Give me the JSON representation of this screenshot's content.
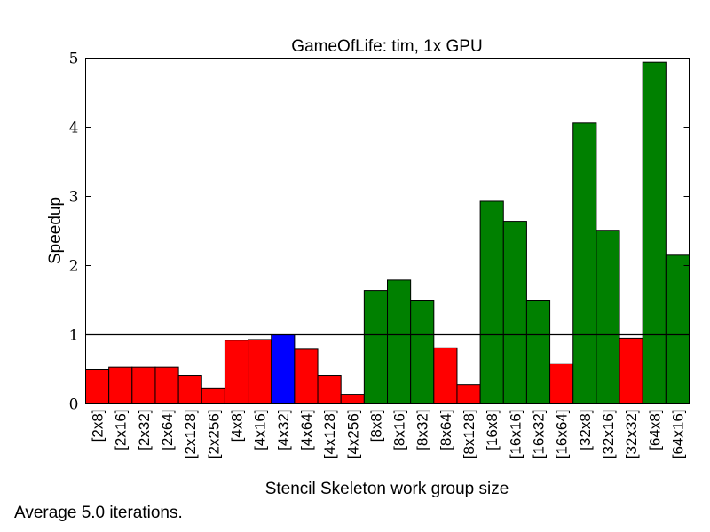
{
  "chart_data": {
    "type": "bar",
    "title": "GameOfLife: tim, 1x GPU",
    "xlabel": "Stencil Skeleton work group size",
    "ylabel": "Speedup",
    "ylim": [
      0,
      5
    ],
    "yticks": [
      0,
      1,
      2,
      3,
      4,
      5
    ],
    "reference_line": 1,
    "grid": false,
    "colors": {
      "below": "#ff0000",
      "baseline": "#0000ff",
      "above": "#008000"
    },
    "categories": [
      "[2x8]",
      "[2x16]",
      "[2x32]",
      "[2x64]",
      "[2x128]",
      "[2x256]",
      "[4x8]",
      "[4x16]",
      "[4x32]",
      "[4x64]",
      "[4x128]",
      "[4x256]",
      "[8x8]",
      "[8x16]",
      "[8x32]",
      "[8x64]",
      "[8x128]",
      "[16x8]",
      "[16x16]",
      "[16x32]",
      "[16x64]",
      "[32x8]",
      "[32x16]",
      "[32x32]",
      "[64x8]",
      "[64x16]"
    ],
    "values": [
      0.5,
      0.53,
      0.53,
      0.53,
      0.41,
      0.22,
      0.92,
      0.93,
      1.0,
      0.79,
      0.41,
      0.14,
      1.64,
      1.79,
      1.5,
      0.81,
      0.28,
      2.93,
      2.64,
      1.5,
      0.58,
      4.06,
      2.51,
      0.95,
      4.94,
      2.15
    ],
    "bar_colors": [
      "below",
      "below",
      "below",
      "below",
      "below",
      "below",
      "below",
      "below",
      "baseline",
      "below",
      "below",
      "below",
      "above",
      "above",
      "above",
      "below",
      "below",
      "above",
      "above",
      "above",
      "below",
      "above",
      "above",
      "below",
      "above",
      "above"
    ]
  },
  "footnote": "Average 5.0 iterations."
}
